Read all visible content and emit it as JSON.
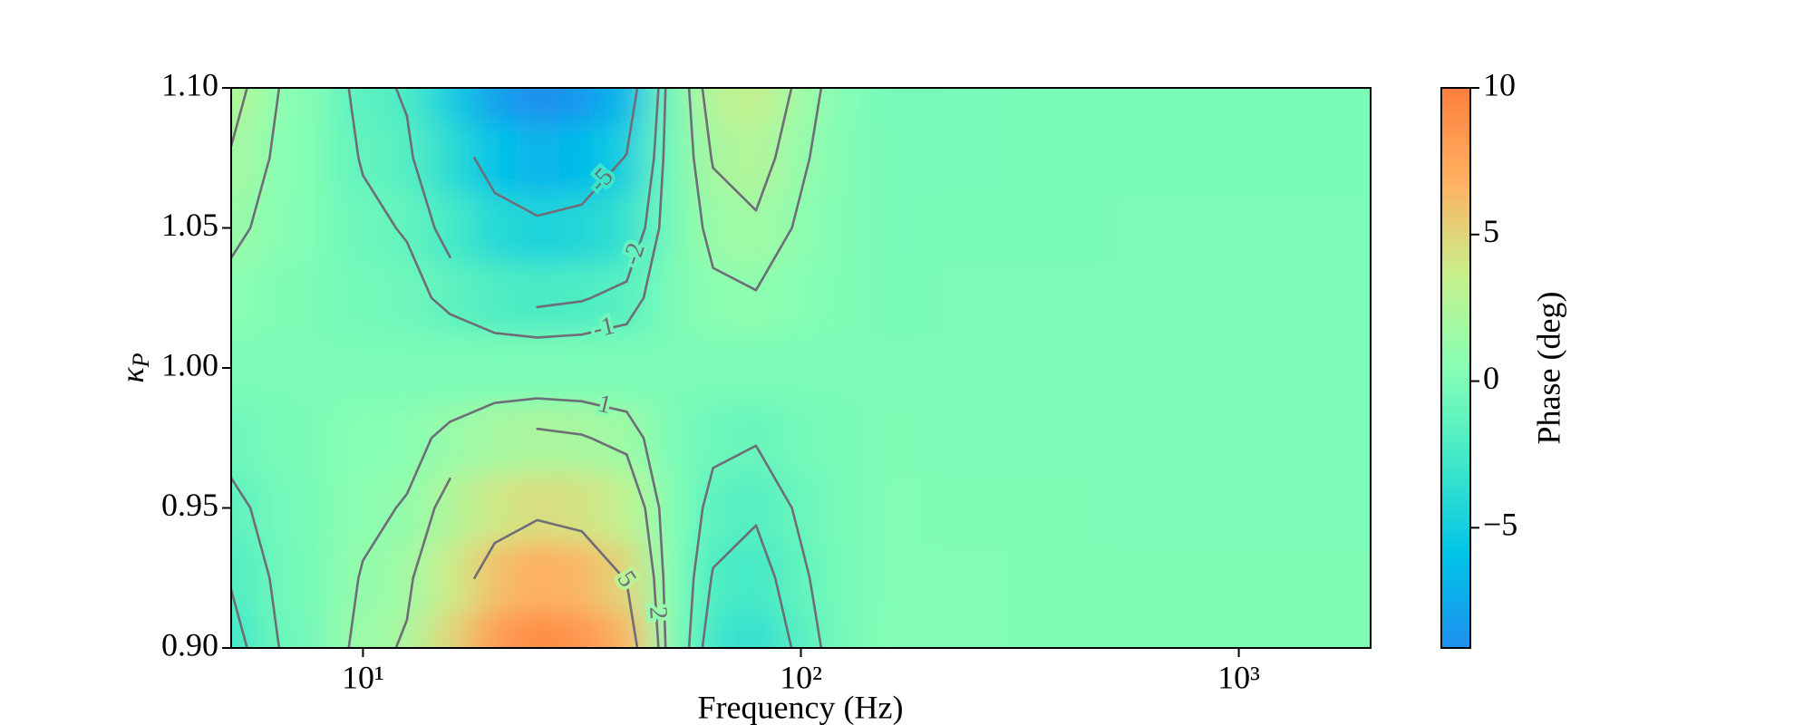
{
  "chart_data": {
    "type": "contour",
    "xlabel": "Frequency (Hz)",
    "ylabel": "κP",
    "colorbar_label": "Phase (deg)",
    "xscale": "log",
    "xlim": [
      5,
      2000
    ],
    "xticks": [
      {
        "value": 10,
        "label": "10¹"
      },
      {
        "value": 100,
        "label": "10²"
      },
      {
        "value": 1000,
        "label": "10³"
      }
    ],
    "ylim": [
      0.9,
      1.1
    ],
    "yticks": [
      {
        "value": 0.9,
        "label": "0.90"
      },
      0.95,
      {
        "value": 1.0,
        "label": "1.00"
      },
      1.05,
      {
        "value": 1.1,
        "label": "1.10"
      }
    ],
    "clim": [
      -9.1,
      10
    ],
    "cticks": [
      {
        "value": -5,
        "label": "−5"
      },
      0,
      5,
      10
    ],
    "colors": [
      "#1e90f0",
      "#00c4e8",
      "#40e8c8",
      "#86ffb4",
      "#c8f08c",
      "#ffb060",
      "#ff7f3f"
    ],
    "contour_color": "#6e6e78",
    "levels": [
      -5,
      -2,
      -1,
      1,
      2,
      5
    ],
    "x": [
      5,
      7,
      10,
      12.6,
      15.8,
      20,
      25,
      31.6,
      40,
      50,
      63,
      79,
      100,
      126,
      158,
      251,
      398,
      631,
      1000,
      2000
    ],
    "y": [
      0.9,
      0.925,
      0.95,
      0.975,
      1.0,
      1.025,
      1.05,
      1.075,
      1.1
    ],
    "z": [
      [
        -2.5,
        -0.5,
        1.4,
        2.2,
        5.0,
        8.0,
        9.2,
        8.5,
        6.5,
        0.5,
        -2.8,
        -3.5,
        -1.6,
        -0.3,
        0.3,
        0.2,
        0.1,
        0.1,
        0.1,
        0.1
      ],
      [
        -1.9,
        -0.4,
        1.1,
        1.7,
        3.8,
        6.0,
        6.9,
        6.4,
        4.9,
        0.4,
        -2.1,
        -2.6,
        -1.2,
        -0.2,
        0.2,
        0.2,
        0.1,
        0.1,
        0.1,
        0.1
      ],
      [
        -1.3,
        -0.3,
        0.7,
        1.1,
        2.5,
        4.0,
        4.6,
        4.3,
        3.3,
        0.3,
        -1.4,
        -1.8,
        -0.8,
        -0.2,
        0.2,
        0.1,
        0.1,
        0,
        0,
        0
      ],
      [
        -0.6,
        -0.1,
        0.4,
        0.6,
        1.3,
        2.0,
        2.3,
        2.1,
        1.6,
        0.1,
        -0.7,
        -0.9,
        -0.4,
        -0.1,
        0.1,
        0,
        0,
        0,
        0,
        0
      ],
      [
        0,
        0,
        0,
        0,
        0,
        0,
        0,
        0,
        0,
        0,
        0,
        0,
        0,
        0,
        0,
        0,
        0,
        0,
        0,
        0
      ],
      [
        0.6,
        0.1,
        -0.4,
        -0.6,
        -1.3,
        -2.0,
        -2.3,
        -2.1,
        -1.6,
        -0.1,
        0.7,
        0.9,
        0.4,
        0.1,
        -0.1,
        0,
        0,
        0,
        0,
        0
      ],
      [
        1.3,
        0.3,
        -0.7,
        -1.1,
        -2.5,
        -4.0,
        -4.6,
        -4.3,
        -3.3,
        -0.3,
        1.4,
        1.8,
        0.8,
        0.2,
        -0.2,
        -0.1,
        -0.1,
        0,
        0,
        0
      ],
      [
        1.9,
        0.4,
        -1.1,
        -1.7,
        -3.8,
        -6.0,
        -6.9,
        -6.4,
        -4.9,
        -0.4,
        2.1,
        2.6,
        1.2,
        0.2,
        -0.2,
        -0.2,
        -0.1,
        -0.1,
        -0.1,
        -0.1
      ],
      [
        2.5,
        0.5,
        -1.4,
        -2.2,
        -5.0,
        -8.0,
        -9.2,
        -8.5,
        -6.5,
        -0.5,
        2.8,
        3.5,
        1.6,
        0.3,
        -0.3,
        -0.2,
        -0.1,
        -0.1,
        -0.1,
        -0.1
      ]
    ]
  }
}
